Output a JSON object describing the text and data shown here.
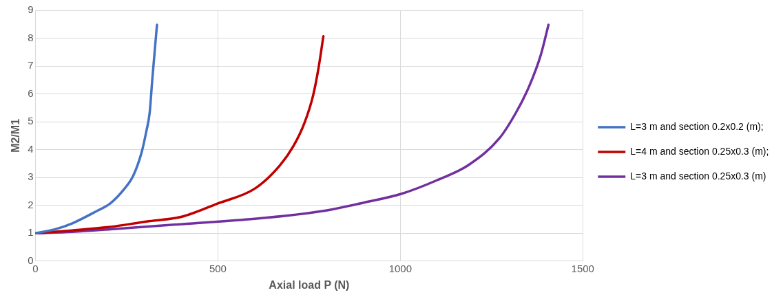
{
  "chart_data": {
    "type": "line",
    "xlabel": "Axial load P (N)",
    "ylabel": "M2/M1",
    "xlim": [
      0,
      1500
    ],
    "xticks": [
      0,
      500,
      1000,
      1500
    ],
    "ylim": [
      0,
      9
    ],
    "yticks": [
      0,
      1,
      2,
      3,
      4,
      5,
      6,
      7,
      8,
      9
    ],
    "grid": true,
    "legend": "right",
    "marker": "none",
    "line_style": "solid",
    "series": [
      {
        "name": "L=3 m and section 0.2x0.2 (m);",
        "color": "#4472c4",
        "x": [
          0,
          53,
          100,
          167,
          205,
          244,
          267,
          290,
          304,
          313,
          320,
          327,
          333
        ],
        "values": [
          1,
          1.14,
          1.35,
          1.79,
          2.07,
          2.6,
          3.04,
          3.86,
          4.67,
          5.33,
          6.5,
          7.58,
          8.48
        ]
      },
      {
        "name": "L=4 m and section 0.25x0.3 (m);",
        "color": "#c00000",
        "x": [
          0,
          100,
          200,
          304,
          403,
          500,
          601,
          669,
          707,
          737,
          761,
          776,
          789
        ],
        "values": [
          1,
          1.1,
          1.22,
          1.42,
          1.6,
          2.07,
          2.6,
          3.42,
          4.13,
          4.95,
          5.95,
          6.95,
          8.07
        ]
      },
      {
        "name": "L=3 m and section 0.25x0.3 (m)",
        "color": "#7030a0",
        "x": [
          0,
          100,
          205,
          403,
          601,
          708,
          799,
          900,
          1004,
          1100,
          1187,
          1271,
          1317,
          1354,
          1385,
          1406
        ],
        "values": [
          1,
          1.05,
          1.14,
          1.33,
          1.52,
          1.66,
          1.82,
          2.1,
          2.42,
          2.9,
          3.45,
          4.4,
          5.33,
          6.3,
          7.4,
          8.48
        ]
      }
    ]
  }
}
